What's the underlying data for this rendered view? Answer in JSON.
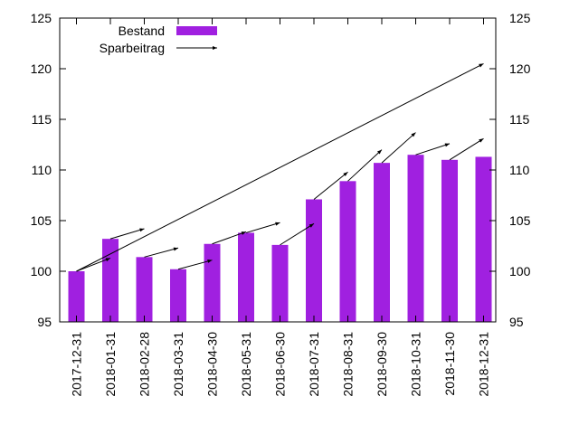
{
  "chart_data": {
    "type": "bar",
    "categories": [
      "2017-12-31",
      "2018-01-31",
      "2018-02-28",
      "2018-03-31",
      "2018-04-30",
      "2018-05-31",
      "2018-06-30",
      "2018-07-31",
      "2018-08-31",
      "2018-09-30",
      "2018-10-31",
      "2018-11-30",
      "2018-12-31"
    ],
    "series": [
      {
        "name": "Bestand",
        "type": "bar",
        "color": "#a020e0",
        "values": [
          100.0,
          103.2,
          101.4,
          100.2,
          102.7,
          103.8,
          102.6,
          107.1,
          108.9,
          110.7,
          111.5,
          111.0,
          111.3
        ]
      },
      {
        "name": "Sparbeitrag",
        "type": "vector",
        "color": "#000000",
        "vectors": [
          {
            "from": "2017-12-31",
            "to": "2018-01-31",
            "y0": 100.0,
            "y1": 101.3
          },
          {
            "from": "2017-12-31",
            "to": "2018-12-31",
            "y0": 100.0,
            "y1": 120.5
          },
          {
            "from": "2018-01-31",
            "to": "2018-02-28",
            "y0": 103.2,
            "y1": 104.2
          },
          {
            "from": "2018-02-28",
            "to": "2018-03-31",
            "y0": 101.4,
            "y1": 102.3
          },
          {
            "from": "2018-03-31",
            "to": "2018-04-30",
            "y0": 100.2,
            "y1": 101.1
          },
          {
            "from": "2018-04-30",
            "to": "2018-05-31",
            "y0": 102.7,
            "y1": 103.9
          },
          {
            "from": "2018-05-31",
            "to": "2018-06-30",
            "y0": 103.8,
            "y1": 104.8
          },
          {
            "from": "2018-06-30",
            "to": "2018-07-31",
            "y0": 102.6,
            "y1": 104.7
          },
          {
            "from": "2018-07-31",
            "to": "2018-08-31",
            "y0": 107.1,
            "y1": 109.8
          },
          {
            "from": "2018-08-31",
            "to": "2018-09-30",
            "y0": 108.9,
            "y1": 112.0
          },
          {
            "from": "2018-09-30",
            "to": "2018-10-31",
            "y0": 110.7,
            "y1": 113.7
          },
          {
            "from": "2018-10-31",
            "to": "2018-11-30",
            "y0": 111.5,
            "y1": 112.6
          },
          {
            "from": "2018-11-30",
            "to": "2018-12-31",
            "y0": 111.0,
            "y1": 113.1
          }
        ]
      }
    ],
    "ylim": [
      95,
      125
    ],
    "yticks": [
      "95",
      "100",
      "105",
      "110",
      "115",
      "120",
      "125"
    ],
    "y2ticks": [
      "95",
      "100",
      "105",
      "110",
      "115",
      "120",
      "125"
    ],
    "xlabel": "",
    "ylabel": "",
    "title": "",
    "legend_position": "top-left",
    "grid": false
  }
}
